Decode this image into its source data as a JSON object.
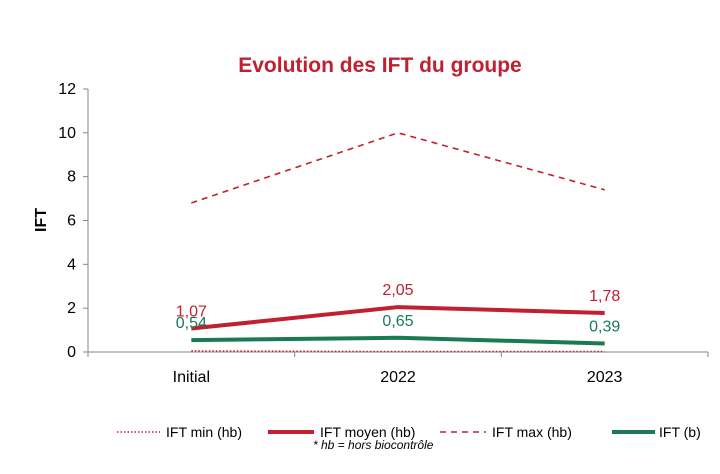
{
  "chart_data": {
    "type": "line",
    "title": "Evolution des IFT du groupe",
    "xlabel": "",
    "ylabel": "IFT",
    "categories": [
      "Initial",
      "2022",
      "2023"
    ],
    "ylim": [
      0,
      12
    ],
    "yticks": [
      0,
      2,
      4,
      6,
      8,
      10,
      12
    ],
    "grid": false,
    "legend_position": "bottom",
    "series": [
      {
        "name": "IFT min (hb)",
        "values": [
          0.05,
          0.02,
          0.02
        ],
        "color": "#c0202f",
        "style": "dotted",
        "labels": null
      },
      {
        "name": "IFT moyen (hb)",
        "values": [
          1.07,
          2.05,
          1.78
        ],
        "color": "#c0202f",
        "style": "solid",
        "labels": [
          "1,07",
          "2,05",
          "1,78"
        ]
      },
      {
        "name": "IFT max (hb)",
        "values": [
          6.8,
          10.0,
          7.4
        ],
        "color": "#c0202f",
        "style": "dashed",
        "labels": null
      },
      {
        "name": "IFT (b)",
        "values": [
          0.54,
          0.65,
          0.39
        ],
        "color": "#1a7a52",
        "style": "solid",
        "labels": [
          "0,54",
          "0,65",
          "0,39"
        ]
      }
    ],
    "footnote": "* hb = hors biocontrôle",
    "title_color": "#c0202f"
  }
}
